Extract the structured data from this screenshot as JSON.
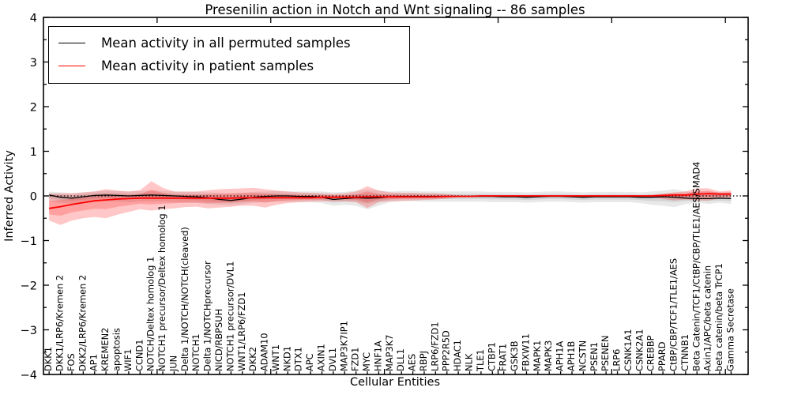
{
  "title": "Presenilin action in Notch and Wnt signaling -- 86 samples",
  "axes": {
    "xlabel": "Cellular Entities",
    "ylabel": "Inferred Activity"
  },
  "chart_data": {
    "type": "line",
    "title": "Presenilin action in Notch and Wnt signaling -- 86 samples",
    "xlabel": "Cellular Entities",
    "ylabel": "Inferred Activity",
    "ylim": [
      -4,
      4
    ],
    "yticks": [
      -4,
      -3,
      -2,
      -1,
      0,
      1,
      2,
      3,
      4
    ],
    "y_minor_step": 0.5,
    "x_units": 62,
    "xticks_major": [
      10,
      20,
      30,
      40,
      50,
      60
    ],
    "grid": false,
    "legend_position": "upper left",
    "zero_line": {
      "y": 0,
      "style": "dotted",
      "color": "#000000"
    },
    "categories": [
      "DKK1",
      "DKK1/LRP6/Kremen 2",
      "FOS",
      "DKK2/LRP6/Kremen 2",
      "AP1",
      "KREMEN2",
      "apoptosis",
      "WIF1",
      "CCND1",
      "NOTCH/Deltex homolog 1",
      "NOTCH1 precursor/Deltex homolog 1",
      "JUN",
      "Delta 1/NOTCH/NOTCH(cleaved)",
      "NOTCH1",
      "Delta 1/NOTCHprecursor",
      "NICD/RBPSUH",
      "NOTCH1 precursor/DVL1",
      "WNT1/LRP6/FZD1",
      "DKK2",
      "ADAM10",
      "WNT1",
      "NKD1",
      "DTX1",
      "APC",
      "AXIN1",
      "DVL1",
      "MAP3K7IP1",
      "FZD1",
      "MYC",
      "HNF1A",
      "MAP3K7",
      "DLL1",
      "AES",
      "RBPJ",
      "LRP6/FZD1",
      "PPP2R5D",
      "HDAC1",
      "NLK",
      "TLE1",
      "CTBP1",
      "FRAT1",
      "GSK3B",
      "FBXW11",
      "MAPK1",
      "MAPK3",
      "APH1A",
      "APH1B",
      "NCSTN",
      "PSEN1",
      "PSENEN",
      "LRP6",
      "CSNK1A1",
      "CSNK2A1",
      "CREBBP",
      "PPARD",
      "CtBP/CBP/TCF1/TLE1/AES",
      "CTNNB1",
      "Beta Catenin/TCF1/CtBP/CBP/TLE1/AES/SMAD4",
      "Axin1/APC/beta catenin",
      "beta catenin/beta TrCP1",
      "Gamma Secretase"
    ],
    "series": [
      {
        "name": "Mean activity in all permuted samples",
        "color": "#000000",
        "linewidth": 1.3,
        "values": [
          0.02,
          -0.03,
          -0.05,
          -0.02,
          0.01,
          0.02,
          0.01,
          0.0,
          0.01,
          0.02,
          0.01,
          0.0,
          -0.01,
          -0.02,
          -0.04,
          -0.08,
          -0.1,
          -0.07,
          -0.03,
          -0.01,
          0.0,
          0.0,
          -0.01,
          -0.01,
          -0.03,
          -0.08,
          -0.06,
          -0.04,
          -0.05,
          -0.04,
          -0.02,
          -0.01,
          -0.01,
          -0.01,
          -0.01,
          -0.01,
          -0.01,
          -0.01,
          -0.01,
          -0.01,
          -0.02,
          -0.02,
          -0.03,
          -0.02,
          -0.01,
          -0.01,
          -0.02,
          -0.03,
          -0.02,
          -0.02,
          -0.02,
          -0.02,
          -0.03,
          -0.03,
          -0.02,
          -0.03,
          -0.05,
          -0.06,
          -0.06,
          -0.05,
          -0.06
        ]
      },
      {
        "name": "Mean activity in patient samples",
        "color": "#ff0000",
        "linewidth": 1.8,
        "values": [
          -0.28,
          -0.24,
          -0.19,
          -0.15,
          -0.11,
          -0.09,
          -0.07,
          -0.06,
          -0.05,
          -0.05,
          -0.05,
          -0.05,
          -0.05,
          -0.05,
          -0.05,
          -0.05,
          -0.05,
          -0.04,
          -0.04,
          -0.04,
          -0.04,
          -0.04,
          -0.04,
          -0.04,
          -0.03,
          -0.03,
          -0.03,
          -0.03,
          -0.02,
          -0.02,
          -0.02,
          -0.02,
          -0.02,
          -0.02,
          -0.02,
          -0.01,
          -0.01,
          -0.01,
          0.0,
          0.0,
          0.0,
          0.0,
          0.0,
          0.0,
          0.0,
          0.0,
          0.0,
          0.0,
          0.0,
          0.0,
          0.0,
          0.0,
          0.0,
          0.0,
          0.01,
          0.02,
          0.02,
          0.04,
          0.05,
          0.04,
          0.04
        ]
      }
    ],
    "bands": [
      {
        "name": "permuted-samples-range",
        "series_ref": 0,
        "color": "#000000",
        "opacity": 0.09,
        "inner_fraction": 0.5,
        "upper": [
          0.1,
          0.08,
          0.06,
          0.08,
          0.1,
          0.12,
          0.11,
          0.1,
          0.11,
          0.12,
          0.11,
          0.1,
          0.09,
          0.09,
          0.08,
          0.07,
          0.06,
          0.07,
          0.09,
          0.1,
          0.11,
          0.1,
          0.1,
          0.1,
          0.1,
          0.08,
          0.09,
          0.12,
          0.14,
          0.12,
          0.1,
          0.11,
          0.11,
          0.1,
          0.1,
          0.1,
          0.1,
          0.1,
          0.1,
          0.09,
          0.09,
          0.09,
          0.08,
          0.09,
          0.1,
          0.1,
          0.09,
          0.08,
          0.09,
          0.09,
          0.09,
          0.09,
          0.08,
          0.1,
          0.12,
          0.15,
          0.1,
          0.08,
          0.1,
          0.08,
          0.08
        ],
        "lower": [
          -0.13,
          -0.15,
          -0.17,
          -0.15,
          -0.13,
          -0.12,
          -0.13,
          -0.14,
          -0.13,
          -0.12,
          -0.13,
          -0.14,
          -0.15,
          -0.16,
          -0.18,
          -0.2,
          -0.21,
          -0.18,
          -0.15,
          -0.14,
          -0.13,
          -0.13,
          -0.14,
          -0.14,
          -0.16,
          -0.22,
          -0.2,
          -0.22,
          -0.3,
          -0.22,
          -0.14,
          -0.12,
          -0.12,
          -0.13,
          -0.13,
          -0.13,
          -0.13,
          -0.13,
          -0.13,
          -0.14,
          -0.14,
          -0.14,
          -0.15,
          -0.14,
          -0.13,
          -0.13,
          -0.14,
          -0.15,
          -0.14,
          -0.14,
          -0.14,
          -0.14,
          -0.16,
          -0.2,
          -0.22,
          -0.25,
          -0.18,
          -0.15,
          -0.18,
          -0.15,
          -0.18
        ]
      },
      {
        "name": "patient-samples-range",
        "series_ref": 1,
        "color": "#ff0000",
        "opacity": 0.22,
        "inner_fraction": 0.5,
        "upper": [
          0.05,
          0.06,
          0.06,
          0.08,
          0.1,
          0.15,
          0.12,
          0.1,
          0.13,
          0.33,
          0.18,
          0.1,
          0.1,
          0.1,
          0.13,
          0.15,
          0.16,
          0.17,
          0.18,
          0.15,
          0.12,
          0.1,
          0.08,
          0.07,
          0.06,
          0.05,
          0.06,
          0.1,
          0.22,
          0.12,
          0.08,
          0.07,
          0.07,
          0.06,
          0.06,
          0.04,
          0.02,
          0.015,
          0.015,
          0.015,
          0.015,
          0.015,
          0.015,
          0.015,
          0.015,
          0.015,
          0.015,
          0.015,
          0.015,
          0.015,
          0.015,
          0.015,
          0.015,
          0.02,
          0.05,
          0.08,
          0.1,
          0.17,
          0.17,
          0.1,
          0.12
        ],
        "lower": [
          -0.55,
          -0.65,
          -0.55,
          -0.5,
          -0.47,
          -0.5,
          -0.42,
          -0.36,
          -0.3,
          -0.33,
          -0.3,
          -0.28,
          -0.25,
          -0.24,
          -0.28,
          -0.26,
          -0.24,
          -0.22,
          -0.22,
          -0.26,
          -0.2,
          -0.16,
          -0.14,
          -0.13,
          -0.12,
          -0.12,
          -0.12,
          -0.14,
          -0.27,
          -0.14,
          -0.12,
          -0.11,
          -0.1,
          -0.09,
          -0.08,
          -0.06,
          -0.03,
          -0.02,
          -0.02,
          -0.02,
          -0.02,
          -0.02,
          -0.02,
          -0.02,
          -0.02,
          -0.02,
          -0.02,
          -0.02,
          -0.02,
          -0.02,
          -0.02,
          -0.02,
          -0.02,
          -0.03,
          -0.07,
          -0.1,
          -0.08,
          -0.1,
          -0.1,
          -0.06,
          -0.04
        ]
      }
    ]
  }
}
